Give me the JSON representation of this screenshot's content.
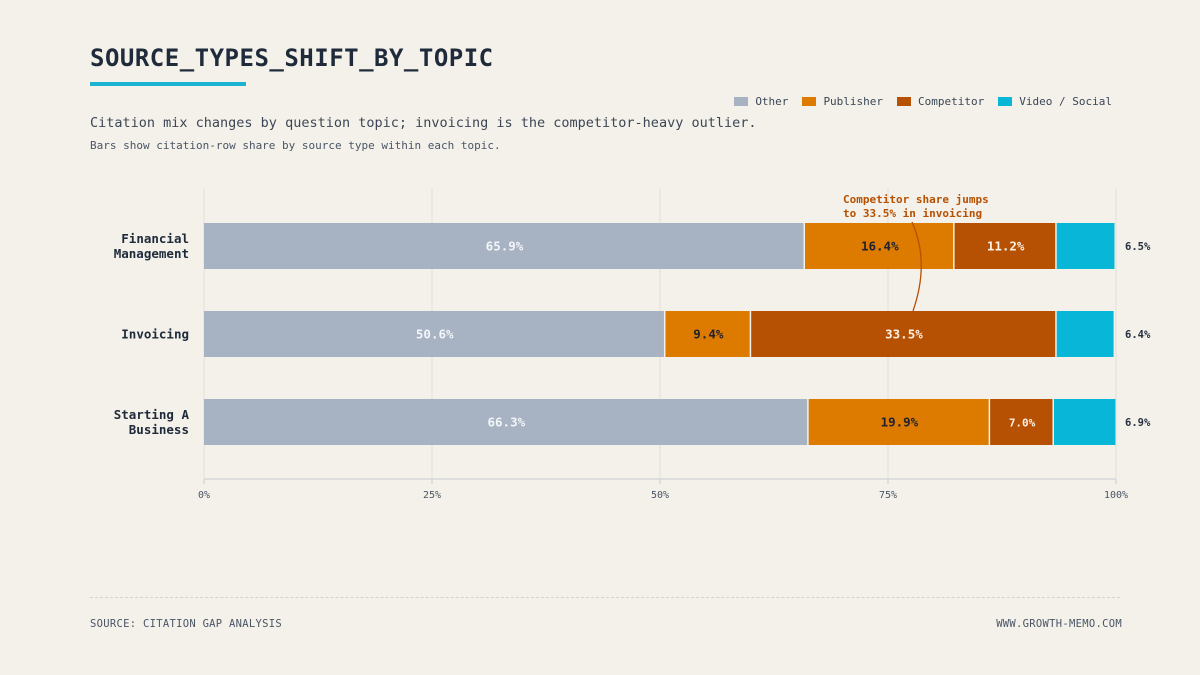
{
  "header": {
    "title": "SOURCE_TYPES_SHIFT_BY_TOPIC",
    "subtitle": "Citation mix changes by question topic; invoicing is the competitor-heavy outlier.",
    "note": "Bars show citation-row share by source type within each topic."
  },
  "colors": {
    "accent": "#1ab3d1",
    "other": "#a7b2c3",
    "publisher": "#dd7a00",
    "competitor": "#b65003",
    "video_social": "#08b6d7",
    "annotation": "#b65003"
  },
  "chart_data": {
    "type": "bar",
    "orientation": "horizontal",
    "stacked": true,
    "categories": [
      [
        "Financial",
        "Management"
      ],
      [
        "Invoicing"
      ],
      [
        "Starting A",
        "Business"
      ]
    ],
    "series": [
      {
        "name": "Other",
        "color": "#a7b2c3",
        "labels": [
          "65.9%",
          "50.6%",
          "66.3%"
        ],
        "values": [
          65.9,
          50.6,
          66.3
        ]
      },
      {
        "name": "Publisher",
        "color": "#dd7a00",
        "labels": [
          "16.4%",
          "9.4%",
          "19.9%"
        ],
        "values": [
          16.4,
          9.4,
          19.9
        ]
      },
      {
        "name": "Competitor",
        "color": "#b65003",
        "labels": [
          "11.2%",
          "33.5%",
          "7.0%"
        ],
        "values": [
          11.2,
          33.5,
          7.0
        ]
      },
      {
        "name": "Video / Social",
        "color": "#08b6d7",
        "labels": [
          "6.5%",
          "6.4%",
          "6.9%"
        ],
        "values": [
          6.5,
          6.4,
          6.9
        ]
      }
    ],
    "xlim": [
      0,
      100
    ],
    "xticks": [
      "0%",
      "25%",
      "50%",
      "75%",
      "100%"
    ],
    "xtick_values": [
      0,
      25,
      50,
      75,
      100
    ],
    "grid": true,
    "legend_position": "top-right",
    "annotation": {
      "lines": [
        "Competitor share jumps",
        "to 33.5% in invoicing"
      ],
      "points_to": {
        "category": "Invoicing",
        "series": "Competitor"
      }
    }
  },
  "footer": {
    "source": "SOURCE: CITATION GAP ANALYSIS",
    "site": "WWW.GROWTH-MEMO.COM"
  }
}
